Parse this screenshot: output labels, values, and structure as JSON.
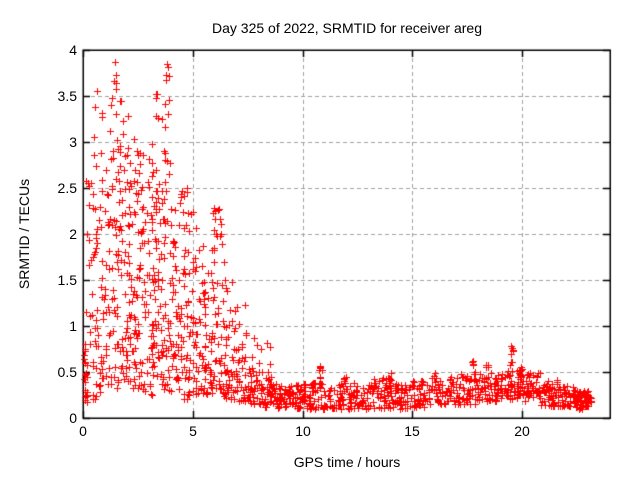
{
  "chart_data": {
    "type": "scatter",
    "title": "Day 325 of 2022, SRMTID for receiver areg",
    "xlabel": "GPS time / hours",
    "ylabel": "SRMTID / TECUs",
    "xlim": [
      0,
      24
    ],
    "ylim": [
      0,
      4
    ],
    "xticks": [
      0,
      5,
      10,
      15,
      20
    ],
    "xtick_labels": [
      "0",
      "5",
      "10",
      "15",
      "20"
    ],
    "yticks": [
      0,
      0.5,
      1,
      1.5,
      2,
      2.5,
      3,
      3.5,
      4
    ],
    "ytick_labels": [
      "0",
      "0.5",
      "1",
      "1.5",
      "2",
      "2.5",
      "3",
      "3.5",
      "4"
    ],
    "grid": true,
    "grid_color": "#a0a0a0",
    "grid_dash": [
      4,
      3
    ],
    "axis_color": "#000000",
    "marker": "plus",
    "marker_color": "#ff0000",
    "marker_size": 7,
    "legend": "none",
    "point_bins": [
      [
        0.05,
        0.2,
        20,
        0.15,
        0.75,
        1.4
      ],
      [
        0.1,
        0.45,
        12,
        0.7,
        2.0,
        1.1
      ],
      [
        0.15,
        0.5,
        8,
        2.0,
        3.3,
        1.0
      ],
      [
        0.45,
        1.0,
        26,
        0.2,
        1.1,
        1.2
      ],
      [
        0.5,
        1.0,
        18,
        1.1,
        2.3,
        1.0
      ],
      [
        0.5,
        0.95,
        8,
        2.4,
        3.6,
        1.0
      ],
      [
        1.0,
        1.6,
        30,
        0.3,
        1.5,
        1.2
      ],
      [
        1.0,
        1.6,
        25,
        1.5,
        2.7,
        1.0
      ],
      [
        1.1,
        1.6,
        10,
        2.7,
        3.6,
        1.0
      ],
      [
        1.4,
        1.55,
        3,
        3.6,
        3.88,
        1.0
      ],
      [
        1.6,
        2.2,
        35,
        0.4,
        1.6,
        1.2
      ],
      [
        1.6,
        2.2,
        28,
        1.6,
        2.8,
        1.0
      ],
      [
        1.6,
        2.1,
        10,
        2.8,
        3.5,
        1.0
      ],
      [
        2.2,
        2.8,
        35,
        0.3,
        1.5,
        1.2
      ],
      [
        2.2,
        2.8,
        25,
        1.5,
        2.6,
        1.0
      ],
      [
        2.3,
        2.8,
        8,
        2.6,
        3.35,
        1.0
      ],
      [
        2.8,
        3.4,
        35,
        0.2,
        1.4,
        1.2
      ],
      [
        2.8,
        3.4,
        25,
        1.4,
        2.5,
        1.0
      ],
      [
        2.9,
        3.4,
        8,
        2.5,
        3.2,
        1.0
      ],
      [
        3.3,
        3.5,
        4,
        3.2,
        3.55,
        1.0
      ],
      [
        3.4,
        4.0,
        35,
        0.3,
        1.5,
        1.2
      ],
      [
        3.4,
        4.0,
        25,
        1.5,
        2.7,
        1.0
      ],
      [
        3.5,
        4.0,
        10,
        2.7,
        3.5,
        1.0
      ],
      [
        3.75,
        3.95,
        4,
        3.5,
        3.86,
        1.0
      ],
      [
        4.0,
        4.6,
        35,
        0.25,
        1.3,
        1.25
      ],
      [
        4.0,
        4.6,
        20,
        1.3,
        2.3,
        1.05
      ],
      [
        4.1,
        4.6,
        5,
        2.3,
        2.65,
        1.0
      ],
      [
        4.6,
        5.2,
        35,
        0.2,
        1.2,
        1.25
      ],
      [
        4.6,
        5.2,
        18,
        1.2,
        2.2,
        1.05
      ],
      [
        4.7,
        5.1,
        5,
        2.2,
        2.55,
        1.0
      ],
      [
        5.2,
        5.8,
        35,
        0.25,
        1.2,
        1.25
      ],
      [
        5.2,
        5.8,
        15,
        1.2,
        2.0,
        1.05
      ],
      [
        5.8,
        6.4,
        35,
        0.25,
        1.1,
        1.2
      ],
      [
        5.8,
        6.4,
        18,
        1.1,
        2.0,
        1.0
      ],
      [
        5.9,
        6.35,
        10,
        2.0,
        2.28,
        1.0
      ],
      [
        6.4,
        7.0,
        35,
        0.2,
        0.9,
        1.3
      ],
      [
        6.4,
        7.0,
        12,
        0.9,
        1.8,
        1.15
      ],
      [
        7.0,
        7.6,
        35,
        0.18,
        0.7,
        1.35
      ],
      [
        7.0,
        7.6,
        8,
        0.7,
        1.25,
        1.1
      ],
      [
        7.6,
        8.2,
        35,
        0.15,
        0.55,
        1.35
      ],
      [
        7.6,
        8.2,
        5,
        0.55,
        0.95,
        1.1
      ],
      [
        8.2,
        8.8,
        35,
        0.12,
        0.45,
        1.3
      ],
      [
        8.3,
        8.55,
        3,
        0.5,
        0.8,
        1.0
      ],
      [
        8.8,
        9.4,
        34,
        0.1,
        0.35,
        1.2
      ],
      [
        9.4,
        10.0,
        38,
        0.1,
        0.38,
        1.2
      ],
      [
        10.0,
        10.6,
        38,
        0.1,
        0.4,
        1.2
      ],
      [
        10.75,
        10.9,
        7,
        0.35,
        0.58,
        0.9
      ],
      [
        10.6,
        12.0,
        62,
        0.1,
        0.38,
        1.2
      ],
      [
        11.85,
        11.98,
        4,
        0.35,
        0.5,
        1.0
      ],
      [
        12.0,
        13.0,
        50,
        0.1,
        0.4,
        1.2
      ],
      [
        13.0,
        14.0,
        50,
        0.1,
        0.45,
        1.15
      ],
      [
        13.9,
        14.05,
        5,
        0.4,
        0.55,
        1.0
      ],
      [
        14.0,
        15.0,
        50,
        0.1,
        0.38,
        1.2
      ],
      [
        15.0,
        15.8,
        42,
        0.1,
        0.4,
        1.2
      ],
      [
        15.8,
        16.1,
        8,
        0.3,
        0.52,
        1.0
      ],
      [
        16.0,
        17.0,
        50,
        0.15,
        0.45,
        1.1
      ],
      [
        17.0,
        18.0,
        50,
        0.15,
        0.48,
        1.1
      ],
      [
        17.7,
        17.88,
        6,
        0.4,
        0.62,
        0.9
      ],
      [
        18.0,
        19.0,
        55,
        0.18,
        0.5,
        1.1
      ],
      [
        18.3,
        18.45,
        5,
        0.45,
        0.6,
        1.0
      ],
      [
        19.0,
        20.0,
        55,
        0.2,
        0.52,
        1.1
      ],
      [
        19.45,
        19.6,
        9,
        0.35,
        0.78,
        0.8
      ],
      [
        19.85,
        19.98,
        5,
        0.4,
        0.6,
        1.0
      ],
      [
        20.0,
        20.8,
        45,
        0.18,
        0.5,
        1.1
      ],
      [
        20.8,
        21.6,
        45,
        0.13,
        0.42,
        1.15
      ],
      [
        21.6,
        22.4,
        45,
        0.12,
        0.35,
        1.15
      ],
      [
        22.4,
        23.0,
        58,
        0.1,
        0.3,
        1.05
      ],
      [
        22.9,
        23.15,
        15,
        0.12,
        0.26,
        1.0
      ]
    ],
    "points_extra": [
      [
        1.45,
        3.87
      ],
      [
        3.82,
        3.85
      ],
      [
        0.62,
        3.55
      ],
      [
        3.38,
        3.52
      ],
      [
        6.15,
        2.26
      ],
      [
        8.4,
        0.82
      ],
      [
        10.8,
        0.57
      ],
      [
        17.78,
        0.62
      ],
      [
        19.5,
        0.78
      ]
    ]
  }
}
